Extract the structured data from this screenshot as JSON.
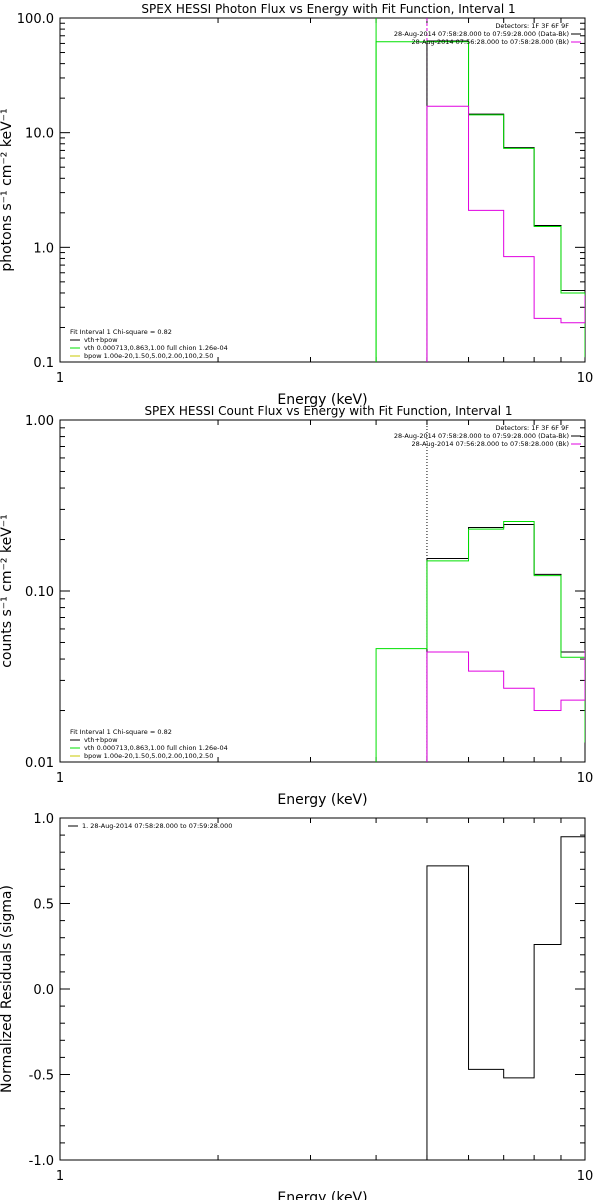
{
  "colors": {
    "data": "#000000",
    "fit_total": "#000000",
    "vth": "#00e000",
    "bpow": "#c8c800",
    "background": "#e000e0",
    "thin": "#e000e0"
  },
  "chart_data": [
    {
      "type": "line",
      "title": "SPEX HESSI Photon Flux vs Energy with Fit Function, Interval 1",
      "xlabel": "Energy (keV)",
      "ylabel": "photons s⁻¹ cm⁻² keV⁻¹",
      "xscale": "log",
      "yscale": "log",
      "xlim": [
        1,
        10
      ],
      "ylim": [
        0.1,
        100
      ],
      "xticks": [
        {
          "v": 1,
          "label": "1"
        },
        {
          "v": 10,
          "label": "10"
        }
      ],
      "yticks": [
        {
          "v": 0.1,
          "label": "0.1"
        },
        {
          "v": 1,
          "label": "1.0"
        },
        {
          "v": 10,
          "label": "10.0"
        },
        {
          "v": 100,
          "label": "100.0"
        }
      ],
      "vlines": [
        {
          "x": 4.0,
          "style": "solid",
          "color": "vth"
        },
        {
          "x": 5.0,
          "style": "dashed",
          "color": "thin"
        }
      ],
      "legend_top": [
        "Detectors: 1F 3F 6F 9F",
        "28-Aug-2014 07:58:28.000 to 07:59:28.000 (Data-Bk)",
        "28-Aug-2014 07:56:28.000 to 07:58:28.000 (Bk)"
      ],
      "legend_top_colors": [
        "",
        "data",
        "background"
      ],
      "legend_bottom": [
        "Fit Interval 1   Chi-square = 0.82",
        "vth+bpow",
        "vth 0.000713,0.863,1.00  full chion 1.26e-04",
        "bpow 1.00e-20,1.50,5.00,2.00,100,2.50"
      ],
      "legend_bottom_colors": [
        "",
        "fit_total",
        "vth",
        "bpow"
      ],
      "edges": [
        5.0,
        6.0,
        7.0,
        8.0,
        9.0,
        10.0
      ],
      "series": [
        {
          "key": "data",
          "values": [
            63,
            14.5,
            7.4,
            1.55,
            0.42,
            0.115
          ]
        },
        {
          "key": "vth",
          "values": [
            62,
            14.3,
            7.3,
            1.52,
            0.4,
            0.11
          ],
          "lead_from": 4.0
        },
        {
          "key": "background",
          "values": [
            17,
            2.1,
            0.83,
            0.24,
            0.22,
            0.38
          ]
        }
      ]
    },
    {
      "type": "line",
      "title": "SPEX HESSI Count Flux vs Energy with Fit Function, Interval 1",
      "xlabel": "Energy (keV)",
      "ylabel": "counts s⁻¹ cm⁻² keV⁻¹",
      "xscale": "log",
      "yscale": "log",
      "xlim": [
        1,
        10
      ],
      "ylim": [
        0.01,
        1
      ],
      "xticks": [
        {
          "v": 1,
          "label": "1"
        },
        {
          "v": 10,
          "label": "10"
        }
      ],
      "yticks": [
        {
          "v": 0.01,
          "label": "0.01"
        },
        {
          "v": 0.1,
          "label": "0.10"
        },
        {
          "v": 1,
          "label": "1.00"
        }
      ],
      "vlines": [
        {
          "x": 5.0,
          "style": "dotted",
          "color": "data"
        },
        {
          "x": 5.0,
          "style": "dashed",
          "color": "thin",
          "from_y": 0.01,
          "to_y": 0.045
        }
      ],
      "legend_top": [
        "Detectors: 1F 3F 6F 9F",
        "28-Aug-2014 07:58:28.000 to 07:59:28.000 (Data-Bk)",
        "28-Aug-2014 07:56:28.000 to 07:58:28.000 (Bk)"
      ],
      "legend_top_colors": [
        "",
        "data",
        "background"
      ],
      "legend_bottom": [
        "Fit Interval 1   Chi-square = 0.82",
        "vth+bpow",
        "vth 0.000713,0.863,1.00  full chion 1.26e-04",
        "bpow 1.00e-20,1.50,5.00,2.00,100,2.50"
      ],
      "legend_bottom_colors": [
        "",
        "fit_total",
        "vth",
        "bpow"
      ],
      "edges": [
        4.0,
        5.0,
        6.0,
        7.0,
        8.0,
        9.0,
        10.0
      ],
      "series": [
        {
          "key": "data",
          "values": [
            null,
            0.155,
            0.235,
            0.245,
            0.125,
            0.044,
            0.014
          ]
        },
        {
          "key": "vth",
          "values": [
            0.046,
            0.15,
            0.23,
            0.255,
            0.123,
            0.041,
            0.013
          ],
          "lead_from": 4.0
        },
        {
          "key": "background",
          "values": [
            null,
            0.044,
            0.034,
            0.027,
            0.02,
            0.023,
            0.045
          ]
        }
      ]
    },
    {
      "type": "line",
      "title": "",
      "xlabel": "Energy (keV)",
      "ylabel": "Normalized Residuals (sigma)",
      "xscale": "log",
      "yscale": "linear",
      "xlim": [
        1,
        10
      ],
      "ylim": [
        -1,
        1
      ],
      "xticks": [
        {
          "v": 1,
          "label": "1"
        },
        {
          "v": 10,
          "label": "10"
        }
      ],
      "yticks": [
        {
          "v": -1,
          "label": "-1.0"
        },
        {
          "v": -0.5,
          "label": "-0.5"
        },
        {
          "v": 0,
          "label": "0.0"
        },
        {
          "v": 0.5,
          "label": "0.5"
        },
        {
          "v": 1,
          "label": "1.0"
        }
      ],
      "vlines": [],
      "legend_top": [
        "1. 28-Aug-2014 07:58:28.000 to 07:59:28.000"
      ],
      "legend_top_colors": [
        "data"
      ],
      "legend_bottom": [],
      "legend_bottom_colors": [],
      "edges": [
        5.0,
        6.0,
        7.0,
        8.0,
        9.0,
        10.0
      ],
      "series": [
        {
          "key": "data",
          "values": [
            0.72,
            -0.47,
            -0.52,
            0.26,
            0.89,
            0.13
          ],
          "lead_from_ymin": true
        }
      ]
    }
  ]
}
